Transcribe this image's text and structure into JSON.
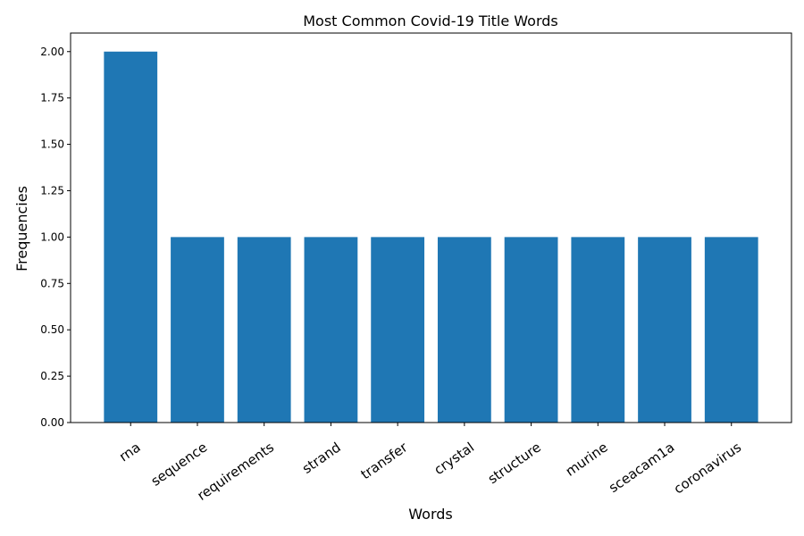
{
  "chart_data": {
    "type": "bar",
    "title": "Most Common Covid-19 Title Words",
    "xlabel": "Words",
    "ylabel": "Frequencies",
    "categories": [
      "rna",
      "sequence",
      "requirements",
      "strand",
      "transfer",
      "crystal",
      "structure",
      "murine",
      "sceacam1a",
      "coronavirus"
    ],
    "values": [
      2,
      1,
      1,
      1,
      1,
      1,
      1,
      1,
      1,
      1
    ],
    "ylim": [
      0,
      2.1
    ],
    "yticks": [
      "0.00",
      "0.25",
      "0.50",
      "0.75",
      "1.00",
      "1.25",
      "1.50",
      "1.75",
      "2.00"
    ],
    "bar_color": "#1f77b4",
    "grid": false
  }
}
